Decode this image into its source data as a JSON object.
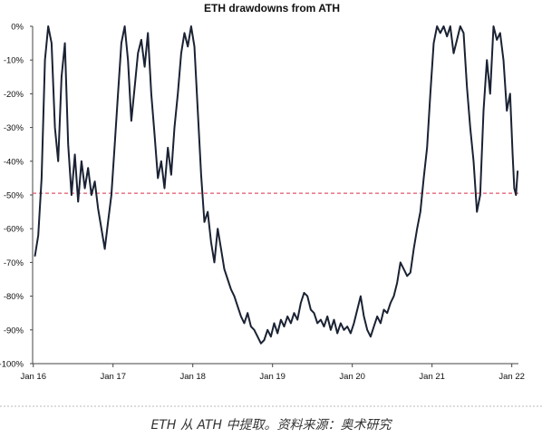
{
  "caption": "ETH 从 ATH 中提取。资料来源：奥术研究",
  "colors": {
    "series": "#1a2233",
    "reference": "#e0566a"
  },
  "chart_data": {
    "type": "line",
    "title": "ETH drawdowns from ATH",
    "xlabel": "",
    "ylabel": "",
    "y_ticks": [
      {
        "value": 0,
        "label": "0%"
      },
      {
        "value": -10,
        "label": "-10%"
      },
      {
        "value": -20,
        "label": "-20%"
      },
      {
        "value": -30,
        "label": "-30%"
      },
      {
        "value": -40,
        "label": "-40%"
      },
      {
        "value": -50,
        "label": "-50%"
      },
      {
        "value": -60,
        "label": "-60%"
      },
      {
        "value": -70,
        "label": "-70%"
      },
      {
        "value": -80,
        "label": "-80%"
      },
      {
        "value": -90,
        "label": "-90%"
      },
      {
        "value": -100,
        "label": "-100%"
      }
    ],
    "x_ticks": [
      {
        "value": "2016-01",
        "label": "Jan 16"
      },
      {
        "value": "2017-01",
        "label": "Jan 17"
      },
      {
        "value": "2018-01",
        "label": "Jan 18"
      },
      {
        "value": "2019-01",
        "label": "Jan 19"
      },
      {
        "value": "2020-01",
        "label": "Jan 20"
      },
      {
        "value": "2021-01",
        "label": "Jan 21"
      },
      {
        "value": "2022-01",
        "label": "Jan 22"
      }
    ],
    "xlim": [
      "2016-01",
      "2022-02"
    ],
    "ylim": [
      -100,
      0
    ],
    "grid": false,
    "legend": "none",
    "reference_line": {
      "y": -49.5,
      "style": "dashed"
    },
    "series": [
      {
        "x": [
          "2016-01",
          "2016-01",
          "2016-02",
          "2016-02",
          "2016-03",
          "2016-03",
          "2016-04",
          "2016-04",
          "2016-05",
          "2016-05",
          "2016-06",
          "2016-06",
          "2016-07",
          "2016-07",
          "2016-08",
          "2016-08",
          "2016-09",
          "2016-09",
          "2016-10",
          "2016-10",
          "2016-11",
          "2016-11",
          "2016-12",
          "2016-12",
          "2017-01",
          "2017-01",
          "2017-02",
          "2017-02",
          "2017-03",
          "2017-03",
          "2017-04",
          "2017-04",
          "2017-05",
          "2017-05",
          "2017-06",
          "2017-06",
          "2017-07",
          "2017-07",
          "2017-08",
          "2017-08",
          "2017-09",
          "2017-09",
          "2017-10",
          "2017-10",
          "2017-11",
          "2017-11",
          "2017-12",
          "2017-12",
          "2018-01",
          "2018-01",
          "2018-02",
          "2018-02",
          "2018-03",
          "2018-03",
          "2018-04",
          "2018-04",
          "2018-05",
          "2018-05",
          "2018-06",
          "2018-06",
          "2018-07",
          "2018-07",
          "2018-08",
          "2018-08",
          "2018-09",
          "2018-09",
          "2018-10",
          "2018-10",
          "2018-11",
          "2018-11",
          "2018-12",
          "2018-12",
          "2019-01",
          "2019-01",
          "2019-02",
          "2019-02",
          "2019-03",
          "2019-03",
          "2019-04",
          "2019-04",
          "2019-05",
          "2019-05",
          "2019-06",
          "2019-06",
          "2019-07",
          "2019-07",
          "2019-08",
          "2019-08",
          "2019-09",
          "2019-09",
          "2019-10",
          "2019-10",
          "2019-11",
          "2019-11",
          "2019-12",
          "2019-12",
          "2020-01",
          "2020-01",
          "2020-02",
          "2020-02",
          "2020-03",
          "2020-03",
          "2020-04",
          "2020-04",
          "2020-05",
          "2020-05",
          "2020-06",
          "2020-06",
          "2020-07",
          "2020-07",
          "2020-08",
          "2020-08",
          "2020-09",
          "2020-09",
          "2020-10",
          "2020-10",
          "2020-11",
          "2020-11",
          "2020-12",
          "2020-12",
          "2021-01",
          "2021-01",
          "2021-02",
          "2021-02",
          "2021-03",
          "2021-03",
          "2021-04",
          "2021-04",
          "2021-05",
          "2021-05",
          "2021-06",
          "2021-06",
          "2021-07",
          "2021-07",
          "2021-08",
          "2021-08",
          "2021-09",
          "2021-09",
          "2021-10",
          "2021-10",
          "2021-11",
          "2021-11",
          "2021-12",
          "2021-12",
          "2022-01",
          "2022-01",
          "2022-01",
          "2022-01"
        ],
        "values": [
          -68,
          -62,
          -45,
          -10,
          0,
          -5,
          -30,
          -40,
          -15,
          -5,
          -35,
          -50,
          -38,
          -52,
          -40,
          -48,
          -42,
          -50,
          -46,
          -54,
          -60,
          -66,
          -58,
          -50,
          -35,
          -20,
          -5,
          0,
          -10,
          -28,
          -18,
          -8,
          -4,
          -12,
          -2,
          -20,
          -32,
          -45,
          -40,
          -48,
          -36,
          -44,
          -30,
          -20,
          -8,
          -2,
          -6,
          0,
          -6,
          -25,
          -44,
          -58,
          -55,
          -64,
          -70,
          -60,
          -66,
          -72,
          -75,
          -78,
          -80,
          -83,
          -86,
          -88,
          -85,
          -89,
          -90,
          -92,
          -94,
          -93,
          -90,
          -92,
          -88,
          -91,
          -87,
          -89,
          -86,
          -88,
          -85,
          -87,
          -82,
          -79,
          -80,
          -84,
          -85,
          -88,
          -87,
          -89,
          -86,
          -90,
          -87,
          -91,
          -88,
          -90,
          -89,
          -91,
          -88,
          -84,
          -80,
          -86,
          -90,
          -92,
          -89,
          -86,
          -88,
          -84,
          -85,
          -82,
          -80,
          -76,
          -70,
          -72,
          -74,
          -73,
          -66,
          -60,
          -55,
          -45,
          -36,
          -20,
          -5,
          0,
          -2,
          0,
          -3,
          0,
          -8,
          -4,
          0,
          -2,
          -18,
          -30,
          -40,
          -55,
          -50,
          -25,
          -10,
          -20,
          0,
          -4,
          -2,
          -10,
          -25,
          -20,
          -38,
          -48,
          -50,
          -43
        ]
      }
    ]
  }
}
